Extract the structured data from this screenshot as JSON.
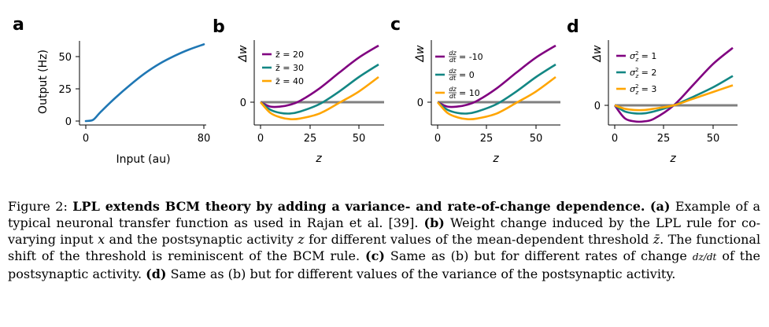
{
  "figure": {
    "panel_letters": [
      "a",
      "b",
      "c",
      "d"
    ],
    "colors": {
      "blue": "#1f77b4",
      "purple": "#800080",
      "teal": "#138784",
      "orange": "#ffa500",
      "zero_line": "#808080"
    }
  },
  "chart_data": [
    {
      "panel": "a",
      "type": "line",
      "xlabel": "Input (au)",
      "ylabel": "Output (Hz)",
      "xlim": [
        0,
        80
      ],
      "ylim": [
        0,
        60
      ],
      "xticks": [
        "0",
        "80"
      ],
      "yticks": [
        "0",
        "25",
        "50"
      ],
      "series": [
        {
          "name": "transfer function",
          "color": "#1f77b4",
          "x": [
            0,
            5,
            10,
            20,
            30,
            40,
            50,
            60,
            70,
            80
          ],
          "y": [
            0,
            1,
            7,
            18,
            28,
            37,
            44.5,
            50.5,
            55.5,
            59.5
          ]
        }
      ]
    },
    {
      "panel": "b",
      "type": "line",
      "xlabel": "z",
      "ylabel": "Δw",
      "xlim": [
        0,
        60
      ],
      "yzero_label": "0",
      "xticks": [
        "0",
        "25",
        "50"
      ],
      "series": [
        {
          "name": "z̄ = 20",
          "color": "#800080",
          "x": [
            0,
            5,
            10,
            15,
            20,
            30,
            40,
            50,
            60
          ],
          "y": [
            0,
            -7,
            -7,
            -4,
            2,
            22,
            47,
            71,
            90
          ]
        },
        {
          "name": "z̄ = 30",
          "color": "#138784",
          "x": [
            0,
            5,
            10,
            15,
            20,
            30,
            40,
            50,
            60
          ],
          "y": [
            0,
            -12,
            -17,
            -18,
            -15,
            -3,
            17,
            40,
            60
          ]
        },
        {
          "name": "z̄ = 40",
          "color": "#ffa500",
          "x": [
            0,
            5,
            10,
            15,
            20,
            30,
            40,
            50,
            60
          ],
          "y": [
            0,
            -17,
            -24,
            -27,
            -26,
            -18,
            -1,
            17,
            40
          ]
        }
      ]
    },
    {
      "panel": "c",
      "type": "line",
      "xlabel": "z",
      "ylabel": "Δw",
      "xlim": [
        0,
        60
      ],
      "yzero_label": "0",
      "xticks": [
        "0",
        "25",
        "50"
      ],
      "series": [
        {
          "name": "dz/dt = -10",
          "color": "#800080",
          "x": [
            0,
            5,
            10,
            15,
            20,
            30,
            40,
            50,
            60
          ],
          "y": [
            0,
            -7,
            -7,
            -4,
            2,
            22,
            47,
            71,
            90
          ]
        },
        {
          "name": "dz/dt = 0",
          "color": "#138784",
          "x": [
            0,
            5,
            10,
            15,
            20,
            30,
            40,
            50,
            60
          ],
          "y": [
            0,
            -12,
            -17,
            -18,
            -15,
            -3,
            17,
            40,
            60
          ]
        },
        {
          "name": "dz/dt = 10",
          "color": "#ffa500",
          "x": [
            0,
            5,
            10,
            15,
            20,
            30,
            40,
            50,
            60
          ],
          "y": [
            0,
            -17,
            -24,
            -27,
            -26,
            -18,
            -1,
            17,
            40
          ]
        }
      ]
    },
    {
      "panel": "d",
      "type": "line",
      "xlabel": "z",
      "ylabel": "Δw",
      "xlim": [
        0,
        60
      ],
      "yzero_label": "0",
      "xticks": [
        "0",
        "25",
        "50"
      ],
      "series": [
        {
          "name": "σz² = 1",
          "color": "#800080",
          "x": [
            0,
            5,
            10,
            15,
            20,
            30,
            40,
            50,
            60
          ],
          "y": [
            0,
            -19,
            -24,
            -24,
            -20,
            0,
            31,
            62,
            86
          ]
        },
        {
          "name": "σz² = 2",
          "color": "#138784",
          "x": [
            0,
            5,
            10,
            15,
            20,
            30,
            40,
            50,
            60
          ],
          "y": [
            0,
            -9,
            -12,
            -12,
            -9,
            0,
            13,
            27,
            44
          ]
        },
        {
          "name": "σz² = 3",
          "color": "#ffa500",
          "x": [
            0,
            5,
            10,
            15,
            20,
            30,
            40,
            50,
            60
          ],
          "y": [
            0,
            -5,
            -7,
            -7,
            -5,
            0,
            10,
            20,
            30
          ]
        }
      ]
    }
  ],
  "caption": {
    "figure_label": "Figure 2:",
    "title": "LPL extends BCM theory by adding a variance- and rate-of-change dependence.",
    "a_label": "(a)",
    "a_text": "Example of a typical neuronal transfer function as used in Rajan et al. [39].",
    "b_label": "(b)",
    "b_text_1": "Weight change induced by the LPL rule for co-varying input",
    "var_x": "x",
    "b_text_2": "and the postsynaptic activity",
    "var_z": "z",
    "b_text_3": "for different values of the mean-dependent threshold",
    "var_zbar": "z̄",
    "b_text_4": ". The functional shift of the threshold is reminiscent of the BCM rule.",
    "c_label": "(c)",
    "c_text_1": "Same as (b) but for different rates of change",
    "c_deriv": "dz/dt",
    "c_text_2": "of the postsynaptic activity.",
    "d_label": "(d)",
    "d_text": "Same as (b) but for different values of the variance of the postsynaptic activity."
  }
}
